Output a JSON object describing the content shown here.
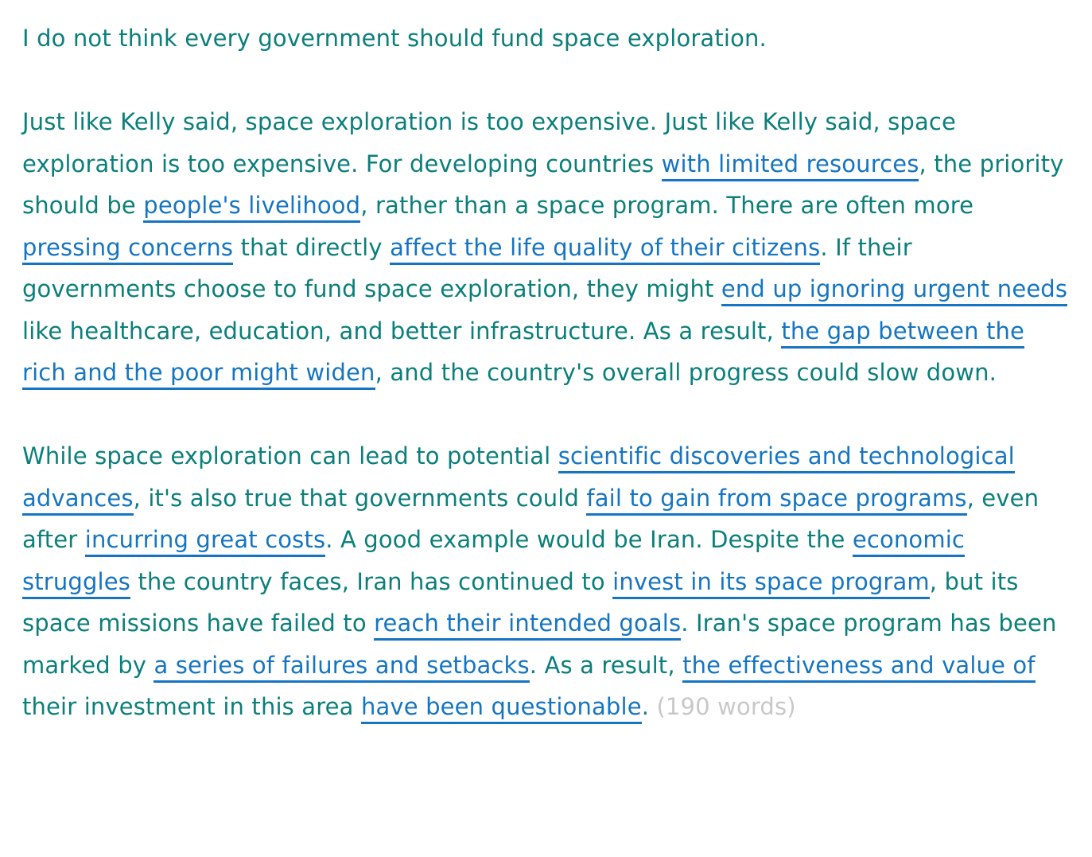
{
  "colors": {
    "text": "#0b7f7a",
    "highlight": "#1575c2",
    "word_count": "#c8c8c8"
  },
  "paragraphs": [
    {
      "segments": [
        {
          "text": "I do not think every government should fund space exploration.",
          "hl": false
        }
      ]
    },
    {
      "segments": [
        {
          "text": "Just like Kelly said, space exploration is too expensive. Just like Kelly said, space exploration is too expensive. For developing countries ",
          "hl": false
        },
        {
          "text": "with limited resources",
          "hl": true
        },
        {
          "text": ", the priority should be ",
          "hl": false
        },
        {
          "text": "people's livelihood",
          "hl": true
        },
        {
          "text": ", rather than a space program. There are often more ",
          "hl": false
        },
        {
          "text": "pressing concerns",
          "hl": true
        },
        {
          "text": " that directly ",
          "hl": false
        },
        {
          "text": "affect the life quality of their citizens",
          "hl": true
        },
        {
          "text": ". If their governments choose to fund space exploration, they might ",
          "hl": false
        },
        {
          "text": "end up ignoring urgent needs",
          "hl": true
        },
        {
          "text": " like healthcare, education, and better infrastructure. As a result, ",
          "hl": false
        },
        {
          "text": "the gap between the rich and the poor might widen",
          "hl": true
        },
        {
          "text": ", and the country's overall progress could slow down.",
          "hl": false
        }
      ]
    },
    {
      "segments": [
        {
          "text": "While space exploration can lead to potential ",
          "hl": false
        },
        {
          "text": "scientific discoveries and technological advances",
          "hl": true
        },
        {
          "text": ", it's also true that governments could ",
          "hl": false
        },
        {
          "text": "fail to gain from space programs",
          "hl": true
        },
        {
          "text": ", even after ",
          "hl": false
        },
        {
          "text": "incurring great costs",
          "hl": true
        },
        {
          "text": ". A good example would be Iran. Despite the ",
          "hl": false
        },
        {
          "text": "economic struggles",
          "hl": true
        },
        {
          "text": " the country faces, Iran has continued to ",
          "hl": false
        },
        {
          "text": "invest in its space program",
          "hl": true
        },
        {
          "text": ", but its space missions have failed to ",
          "hl": false
        },
        {
          "text": "reach their intended goals",
          "hl": true
        },
        {
          "text": ". Iran's space program has been marked by ",
          "hl": false
        },
        {
          "text": "a series of failures and setbacks",
          "hl": true
        },
        {
          "text": ". As a result, ",
          "hl": false
        },
        {
          "text": "the effectiveness and value of",
          "hl": true
        },
        {
          "text": " their investment in this area ",
          "hl": false
        },
        {
          "text": "have been questionable",
          "hl": true
        },
        {
          "text": ".",
          "hl": false
        }
      ],
      "word_count": "(190 words)"
    }
  ]
}
